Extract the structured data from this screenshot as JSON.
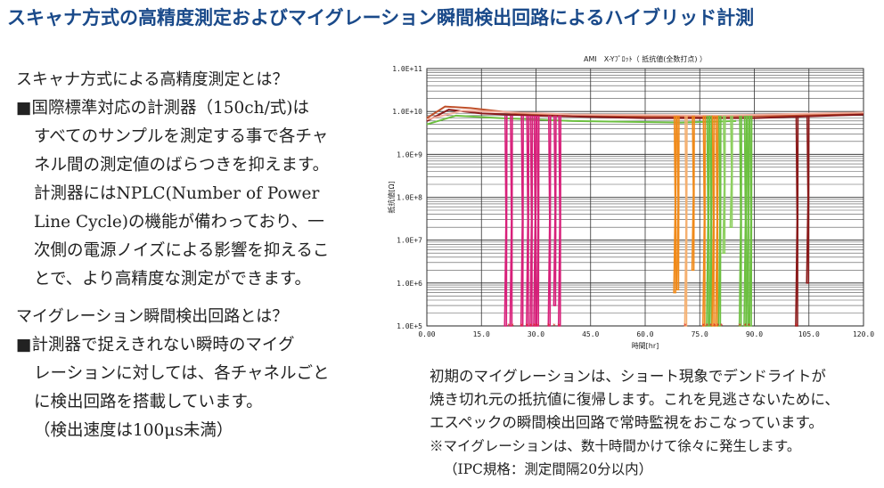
{
  "header": {
    "title": "スキャナ方式の高精度測定およびマイグレーション瞬間検出回路によるハイブリッド計測"
  },
  "left": {
    "section1_heading": "スキャナ方式による高精度測定とは？",
    "section1_lines": [
      "■国際標準対応の計測器（150ch/式)は",
      "すべてのサンプルを測定する事で各チャ",
      "ネル間の測定値のばらつきを抑えます。",
      "計測器にはNPLC(Number of Power",
      "Line Cycle)の機能が備わっており、一",
      "次側の電源ノイズによる影響を抑えるこ",
      "とで、より高精度な測定ができます。"
    ],
    "section2_heading": "マイグレーション瞬間検出回路とは？",
    "section2_lines": [
      "■計測器で捉えきれない瞬時のマイグ",
      "レーションに対しては、各チャネルごと",
      "に検出回路を搭載しています。",
      "（検出速度は100μs未満）"
    ]
  },
  "caption": {
    "lines": [
      "初期のマイグレーションは、ショート現象でデンドライトが",
      "焼き切れ元の抵抗値に復帰します。これを見逃さないために、",
      "エスペックの瞬間検出回路で常時監視をおこなっています。"
    ],
    "note": "※マイグレーションは、数十時間かけて徐々に発生します。",
    "note2": "（IPC規格：測定間隔20分以内）"
  },
  "colors": {
    "title": "#1a4a8a",
    "magenta": "#d8207a",
    "orange": "#f08a1a",
    "green": "#6cc040",
    "darkred": "#8a1a1a",
    "marker": "#e02020"
  },
  "chart_data": {
    "type": "line",
    "title": "AMI　X-Yﾌﾟﾛｯﾄ（ 抵抗値(全数打点) ）",
    "xlabel": "時間[hr]",
    "ylabel": "抵抗値[Ω]",
    "xlim": [
      0,
      120
    ],
    "ylim": [
      100000,
      100000000000
    ],
    "yscale": "log",
    "xticks": [
      "0.00",
      "15.0",
      "30.0",
      "45.0",
      "60.0",
      "75.0",
      "90.0",
      "105.0",
      "120.0"
    ],
    "yticks": [
      "1.0E+5",
      "1.0E+6",
      "1.0E+7",
      "1.0E+8",
      "1.0E+9",
      "1.0E+10",
      "1.0E+11"
    ],
    "baselines": [
      {
        "color": "#c0502a",
        "points": [
          [
            0,
            7000000000.0
          ],
          [
            5,
            13000000000.0
          ],
          [
            12,
            12000000000.0
          ],
          [
            25,
            9000000000.0
          ],
          [
            45,
            8000000000.0
          ],
          [
            70,
            7500000000.0
          ],
          [
            100,
            8000000000.0
          ],
          [
            120,
            9000000000.0
          ]
        ]
      },
      {
        "color": "#8a1a1a",
        "points": [
          [
            0,
            6000000000.0
          ],
          [
            6,
            11000000000.0
          ],
          [
            15,
            9000000000.0
          ],
          [
            30,
            8000000000.0
          ],
          [
            60,
            7000000000.0
          ],
          [
            90,
            7000000000.0
          ],
          [
            120,
            8500000000.0
          ]
        ]
      },
      {
        "color": "#6cc040",
        "points": [
          [
            0,
            5000000000.0
          ],
          [
            8,
            8000000000.0
          ],
          [
            20,
            7000000000.0
          ],
          [
            40,
            6000000000.0
          ],
          [
            70,
            5500000000.0
          ],
          [
            85,
            6000000000.0
          ]
        ]
      },
      {
        "color": "#f4b0a0",
        "points": [
          [
            0,
            6500000000.0
          ],
          [
            10,
            10500000000.0
          ],
          [
            40,
            8500000000.0
          ],
          [
            80,
            8000000000.0
          ],
          [
            120,
            9500000000.0
          ]
        ]
      }
    ],
    "drops": [
      {
        "x": 21.5,
        "color": "#d8207a",
        "min": 100000.0
      },
      {
        "x": 23,
        "color": "#d8207a",
        "min": 100000.0
      },
      {
        "x": 26,
        "color": "#d8207a",
        "min": 100000.0
      },
      {
        "x": 27.5,
        "color": "#d8207a",
        "min": 100000.0
      },
      {
        "x": 28.5,
        "color": "#d8207a",
        "min": 100000.0
      },
      {
        "x": 29.5,
        "color": "#d8207a",
        "min": 100000.0
      },
      {
        "x": 30.3,
        "color": "#d8207a",
        "min": 100000.0
      },
      {
        "x": 33.5,
        "color": "#d8207a",
        "min": 100000.0
      },
      {
        "x": 35,
        "color": "#d8207a",
        "min": 300000.0
      },
      {
        "x": 36.3,
        "color": "#d8207a",
        "min": 100000.0
      },
      {
        "x": 68,
        "color": "#f08a1a",
        "min": 600000.0
      },
      {
        "x": 68.8,
        "color": "#f08a1a",
        "min": 700000.0
      },
      {
        "x": 71,
        "color": "#f5b070",
        "min": 100000.0
      },
      {
        "x": 73,
        "color": "#f08a1a",
        "min": 2000000.0
      },
      {
        "x": 76,
        "color": "#f08a1a",
        "min": 100000.0
      },
      {
        "x": 77,
        "color": "#6cc040",
        "min": 100000.0
      },
      {
        "x": 77.8,
        "color": "#6cc040",
        "min": 100000.0
      },
      {
        "x": 78.5,
        "color": "#f08a1a",
        "min": 100000.0
      },
      {
        "x": 79.5,
        "color": "#f08a1a",
        "min": 100000.0
      },
      {
        "x": 80.3,
        "color": "#6cc040",
        "min": 100000.0
      },
      {
        "x": 81.5,
        "color": "#8ed060",
        "min": 5000000.0
      },
      {
        "x": 83.5,
        "color": "#8ed060",
        "min": 20000000.0
      },
      {
        "x": 86,
        "color": "#6cc040",
        "min": 100000.0
      },
      {
        "x": 87.3,
        "color": "#6cc040",
        "min": 100000.0
      },
      {
        "x": 88,
        "color": "#6cc040",
        "min": 100000.0
      },
      {
        "x": 88.8,
        "color": "#6cc040",
        "min": 100000.0
      },
      {
        "x": 101.5,
        "color": "#8a1a1a",
        "min": 100000.0
      },
      {
        "x": 104.5,
        "color": "#8a1a1a",
        "min": 1000000.0
      }
    ],
    "markers_at_floor": [
      22.5,
      23.5,
      26,
      27.5,
      28.5,
      29.5,
      30.3,
      33.5,
      35,
      36.3,
      71,
      76,
      77,
      78,
      79,
      80,
      81,
      86,
      87.5,
      88.5,
      101.5
    ]
  }
}
